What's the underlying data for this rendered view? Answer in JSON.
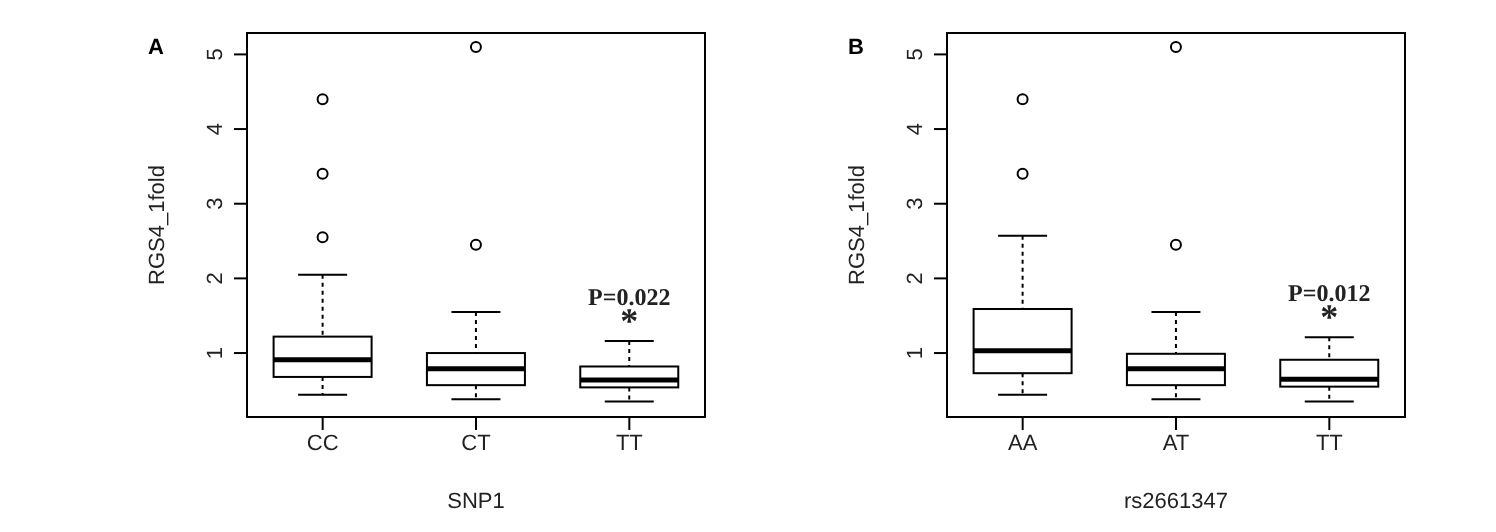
{
  "chart_data": [
    {
      "type": "box",
      "title": "A",
      "xlabel": "SNP1",
      "ylabel": "RGS4_1fold",
      "categories": [
        "CC",
        "CT",
        "TT"
      ],
      "boxes": [
        {
          "low": 0.44,
          "q1": 0.68,
          "median": 0.91,
          "q3": 1.22,
          "high": 2.05,
          "outliers": [
            2.55,
            3.4,
            4.4
          ]
        },
        {
          "low": 0.38,
          "q1": 0.57,
          "median": 0.79,
          "q3": 1.0,
          "high": 1.55,
          "outliers": [
            2.45,
            5.1
          ]
        },
        {
          "low": 0.35,
          "q1": 0.54,
          "median": 0.64,
          "q3": 0.82,
          "high": 1.16
        }
      ],
      "ylim": [
        0.13,
        5.3
      ],
      "yticks": [
        1,
        2,
        3,
        4,
        5
      ],
      "annotations": [
        "P=0.022",
        "*"
      ]
    },
    {
      "type": "box",
      "title": "B",
      "xlabel": "rs2661347",
      "ylabel": "RGS4_1fold",
      "categories": [
        "AA",
        "AT",
        "TT"
      ],
      "boxes": [
        {
          "low": 0.44,
          "q1": 0.73,
          "median": 1.03,
          "q3": 1.59,
          "high": 2.57,
          "outliers": [
            3.4,
            4.4
          ]
        },
        {
          "low": 0.38,
          "q1": 0.57,
          "median": 0.79,
          "q3": 0.99,
          "high": 1.55,
          "outliers": [
            2.45,
            5.1
          ]
        },
        {
          "low": 0.35,
          "q1": 0.55,
          "median": 0.65,
          "q3": 0.91,
          "high": 1.21
        }
      ],
      "ylim": [
        0.13,
        5.3
      ],
      "yticks": [
        1,
        2,
        3,
        4,
        5
      ],
      "annotations": [
        "P=0.012",
        "*"
      ]
    }
  ]
}
